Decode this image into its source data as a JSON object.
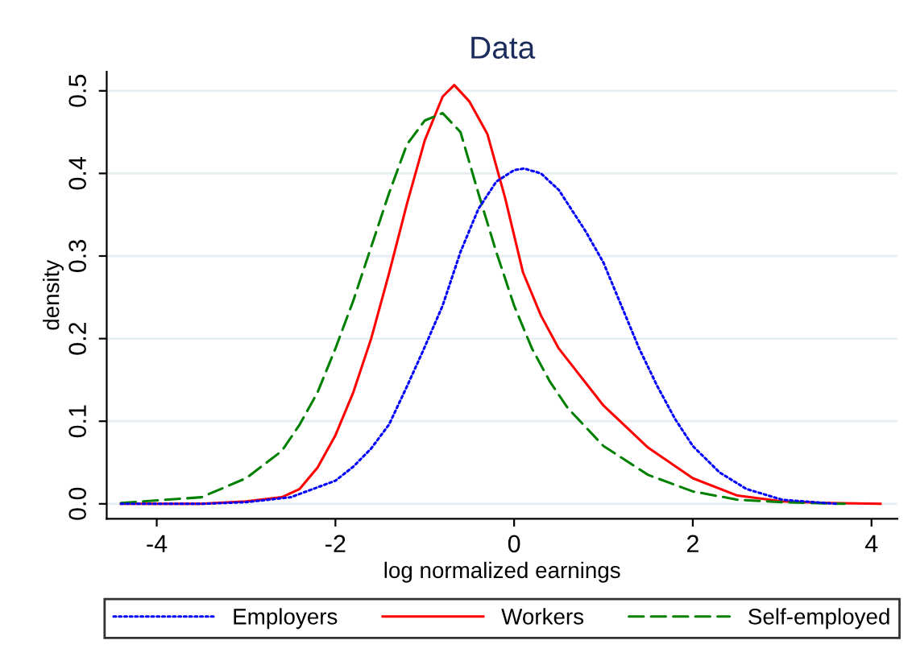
{
  "chart_data": {
    "type": "line",
    "title": "Data",
    "xlabel": "log normalized earnings",
    "ylabel": "density",
    "xlim": [
      -4.56,
      4.29
    ],
    "ylim": [
      -0.018,
      0.523
    ],
    "xticks": [
      -4,
      -2,
      0,
      2,
      4
    ],
    "yticks": [
      {
        "value": 0,
        "label": "0.0"
      },
      0.1,
      0.2,
      0.3,
      0.4,
      0.5
    ],
    "grid": "y",
    "legend": "bottom",
    "marker": "none",
    "series": [
      {
        "name": "Employers",
        "color": "#0000ff",
        "line_style": "dotted",
        "x": [
          -4.4,
          -3.5,
          -3,
          -2.5,
          -2,
          -1.8,
          -1.6,
          -1.4,
          -1.2,
          -1.0,
          -0.8,
          -0.6,
          -0.4,
          -0.2,
          0,
          0.11,
          0.3,
          0.5,
          0.8,
          1.0,
          1.2,
          1.4,
          1.6,
          1.8,
          2.0,
          2.3,
          2.6,
          3,
          3.6
        ],
        "values": [
          0,
          0,
          0.002,
          0.008,
          0.028,
          0.045,
          0.067,
          0.096,
          0.142,
          0.19,
          0.24,
          0.305,
          0.357,
          0.39,
          0.404,
          0.406,
          0.4,
          0.38,
          0.33,
          0.292,
          0.24,
          0.188,
          0.143,
          0.103,
          0.07,
          0.038,
          0.018,
          0.005,
          0
        ]
      },
      {
        "name": "Workers",
        "color": "#ff0000",
        "line_style": "solid",
        "x": [
          -4.4,
          -3.5,
          -3,
          -2.6,
          -2.4,
          -2.2,
          -2,
          -1.8,
          -1.6,
          -1.4,
          -1.2,
          -1.0,
          -0.8,
          -0.67,
          -0.5,
          -0.3,
          -0.1,
          0.1,
          0.3,
          0.5,
          1.0,
          1.5,
          2.0,
          2.5,
          3,
          3.5,
          4.1
        ],
        "values": [
          0,
          0,
          0.003,
          0.008,
          0.018,
          0.044,
          0.083,
          0.135,
          0.2,
          0.279,
          0.363,
          0.44,
          0.493,
          0.507,
          0.487,
          0.448,
          0.37,
          0.28,
          0.228,
          0.188,
          0.119,
          0.068,
          0.031,
          0.01,
          0.003,
          0.001,
          0
        ]
      },
      {
        "name": "Self-employed",
        "color": "#008000",
        "line_style": "dashed",
        "x": [
          -4.4,
          -3.5,
          -3,
          -2.6,
          -2.4,
          -2.2,
          -2,
          -1.8,
          -1.6,
          -1.4,
          -1.2,
          -1.0,
          -0.8,
          -0.6,
          -0.4,
          -0.2,
          0,
          0.2,
          0.4,
          0.6,
          1.0,
          1.5,
          2,
          2.5,
          3,
          3.7
        ],
        "values": [
          0.001,
          0.008,
          0.031,
          0.064,
          0.096,
          0.135,
          0.188,
          0.246,
          0.311,
          0.376,
          0.435,
          0.464,
          0.473,
          0.45,
          0.376,
          0.305,
          0.24,
          0.188,
          0.148,
          0.116,
          0.07,
          0.035,
          0.015,
          0.005,
          0.002,
          0
        ]
      }
    ]
  }
}
